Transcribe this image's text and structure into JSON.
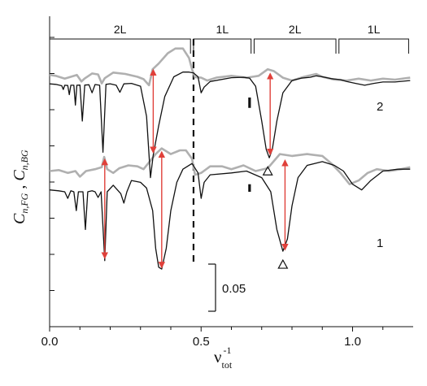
{
  "chart_data": {
    "type": "line",
    "xlabel": "ν",
    "xlabel_superscript": "-1",
    "xlabel_subscript": "tot",
    "ylabel_part1": "C",
    "ylabel_part1_sub": "n,FG",
    "ylabel_sep": " ,  ",
    "ylabel_part2": "C",
    "ylabel_part2_sub": "n,BG",
    "xlim": [
      0,
      1.2
    ],
    "xticks": [
      {
        "value": 0.0,
        "label": "0.0"
      },
      {
        "value": 0.5,
        "label": "0.5"
      },
      {
        "value": 1.0,
        "label": "1.0"
      }
    ],
    "scale_bar": {
      "label": "0.05",
      "value": 0.05
    },
    "dashed_line_x": 0.475,
    "regions": [
      {
        "label": "2L",
        "x_start": 0.0,
        "x_end": 0.465
      },
      {
        "label": "1L",
        "x_start": 0.475,
        "x_end": 0.665
      },
      {
        "label": "2L",
        "x_start": 0.675,
        "x_end": 0.945
      },
      {
        "label": "1L",
        "x_start": 0.955,
        "x_end": 1.185
      }
    ],
    "curve_labels": [
      {
        "label": "2",
        "series": "upper"
      },
      {
        "label": "1",
        "series": "lower"
      }
    ],
    "triangle_markers": [
      {
        "x": 0.72,
        "series": "upper"
      },
      {
        "x": 0.77,
        "series": "lower"
      }
    ],
    "series": [
      {
        "color": "#111111",
        "group": "upper",
        "points": [
          [
            0.0,
            0.0145
          ],
          [
            0.02,
            0.014
          ],
          [
            0.04,
            0.0125
          ],
          [
            0.045,
            0.0085
          ],
          [
            0.05,
            0.013
          ],
          [
            0.06,
            0.0128
          ],
          [
            0.065,
            0.003
          ],
          [
            0.07,
            0.013
          ],
          [
            0.08,
            0.013
          ],
          [
            0.085,
            -0.008
          ],
          [
            0.09,
            0.013
          ],
          [
            0.1,
            0.0132
          ],
          [
            0.108,
            -0.025
          ],
          [
            0.116,
            0.0132
          ],
          [
            0.13,
            0.0135
          ],
          [
            0.14,
            0.005
          ],
          [
            0.15,
            0.0138
          ],
          [
            0.165,
            0.013
          ],
          [
            0.176,
            -0.058
          ],
          [
            0.186,
            0.014
          ],
          [
            0.2,
            0.0146
          ],
          [
            0.22,
            0.013
          ],
          [
            0.232,
            0.0055
          ],
          [
            0.245,
            0.0145
          ],
          [
            0.27,
            0.015
          ],
          [
            0.3,
            0.012
          ],
          [
            0.32,
            -0.02
          ],
          [
            0.333,
            -0.085
          ],
          [
            0.342,
            -0.061
          ],
          [
            0.36,
            -0.03
          ],
          [
            0.38,
            0.001
          ],
          [
            0.41,
            0.022
          ],
          [
            0.44,
            0.027
          ],
          [
            0.46,
            0.027
          ],
          [
            0.475,
            0.026
          ],
          [
            0.49,
            0.022
          ],
          [
            0.5,
            0.005
          ],
          [
            0.51,
            0.011
          ],
          [
            0.53,
            0.017
          ],
          [
            0.6,
            0.021
          ],
          [
            0.64,
            0.0215
          ],
          [
            0.66,
            0.0205
          ],
          [
            0.68,
            0.012
          ],
          [
            0.7,
            -0.025
          ],
          [
            0.715,
            -0.055
          ],
          [
            0.725,
            -0.064
          ],
          [
            0.735,
            -0.055
          ],
          [
            0.75,
            -0.025
          ],
          [
            0.77,
            0.005
          ],
          [
            0.8,
            0.018
          ],
          [
            0.83,
            0.0205
          ],
          [
            0.86,
            0.0215
          ],
          [
            0.88,
            0.023
          ],
          [
            0.9,
            0.022
          ],
          [
            0.93,
            0.02
          ],
          [
            0.96,
            0.019
          ],
          [
            0.98,
            0.017
          ],
          [
            1.01,
            0.015
          ],
          [
            1.04,
            0.013
          ],
          [
            1.07,
            0.015
          ],
          [
            1.1,
            0.0165
          ],
          [
            1.14,
            0.0165
          ],
          [
            1.19,
            0.018
          ]
        ]
      },
      {
        "color": "#b0b0b0",
        "group": "upper",
        "points": [
          [
            0.0,
            0.024
          ],
          [
            0.02,
            0.023
          ],
          [
            0.05,
            0.02
          ],
          [
            0.07,
            0.022
          ],
          [
            0.09,
            0.024
          ],
          [
            0.105,
            0.017
          ],
          [
            0.115,
            0.02
          ],
          [
            0.14,
            0.0255
          ],
          [
            0.16,
            0.0245
          ],
          [
            0.172,
            0.015
          ],
          [
            0.182,
            0.0205
          ],
          [
            0.21,
            0.0265
          ],
          [
            0.25,
            0.025
          ],
          [
            0.29,
            0.022
          ],
          [
            0.31,
            0.0195
          ],
          [
            0.328,
            0.013
          ],
          [
            0.34,
            0.03
          ],
          [
            0.36,
            0.036
          ],
          [
            0.39,
            0.047
          ],
          [
            0.415,
            0.052
          ],
          [
            0.44,
            0.052
          ],
          [
            0.46,
            0.042
          ],
          [
            0.47,
            0.03
          ],
          [
            0.48,
            0.0215
          ],
          [
            0.5,
            0.021
          ],
          [
            0.52,
            0.018
          ],
          [
            0.55,
            0.021
          ],
          [
            0.6,
            0.023
          ],
          [
            0.65,
            0.021
          ],
          [
            0.69,
            0.023
          ],
          [
            0.72,
            0.03
          ],
          [
            0.74,
            0.028
          ],
          [
            0.77,
            0.021
          ],
          [
            0.8,
            0.018
          ],
          [
            0.84,
            0.022
          ],
          [
            0.88,
            0.025
          ],
          [
            0.9,
            0.022
          ],
          [
            0.94,
            0.019
          ],
          [
            0.98,
            0.018
          ],
          [
            1.02,
            0.02
          ],
          [
            1.06,
            0.018
          ],
          [
            1.1,
            0.02
          ],
          [
            1.14,
            0.019
          ],
          [
            1.19,
            0.021
          ]
        ]
      },
      {
        "color": "#111111",
        "group": "lower",
        "points": [
          [
            0.0,
            -0.098
          ],
          [
            0.03,
            -0.099
          ],
          [
            0.05,
            -0.1
          ],
          [
            0.06,
            -0.107
          ],
          [
            0.07,
            -0.099
          ],
          [
            0.08,
            -0.1
          ],
          [
            0.088,
            -0.12
          ],
          [
            0.095,
            -0.1
          ],
          [
            0.11,
            -0.1
          ],
          [
            0.118,
            -0.14
          ],
          [
            0.126,
            -0.1
          ],
          [
            0.14,
            -0.099
          ],
          [
            0.15,
            -0.1
          ],
          [
            0.16,
            -0.106
          ],
          [
            0.17,
            -0.1
          ],
          [
            0.182,
            -0.173
          ],
          [
            0.19,
            -0.1
          ],
          [
            0.21,
            -0.093
          ],
          [
            0.235,
            -0.102
          ],
          [
            0.245,
            -0.112
          ],
          [
            0.255,
            -0.1
          ],
          [
            0.27,
            -0.088
          ],
          [
            0.3,
            -0.09
          ],
          [
            0.32,
            -0.096
          ],
          [
            0.34,
            -0.12
          ],
          [
            0.35,
            -0.16
          ],
          [
            0.36,
            -0.18
          ],
          [
            0.37,
            -0.182
          ],
          [
            0.385,
            -0.16
          ],
          [
            0.4,
            -0.12
          ],
          [
            0.42,
            -0.09
          ],
          [
            0.44,
            -0.076
          ],
          [
            0.47,
            -0.07
          ],
          [
            0.49,
            -0.08
          ],
          [
            0.5,
            -0.107
          ],
          [
            0.51,
            -0.09
          ],
          [
            0.53,
            -0.082
          ],
          [
            0.6,
            -0.08
          ],
          [
            0.65,
            -0.078
          ],
          [
            0.7,
            -0.085
          ],
          [
            0.73,
            -0.1
          ],
          [
            0.75,
            -0.14
          ],
          [
            0.77,
            -0.163
          ],
          [
            0.785,
            -0.15
          ],
          [
            0.8,
            -0.115
          ],
          [
            0.82,
            -0.085
          ],
          [
            0.85,
            -0.072
          ],
          [
            0.9,
            -0.068
          ],
          [
            0.94,
            -0.072
          ],
          [
            0.97,
            -0.078
          ],
          [
            1.0,
            -0.092
          ],
          [
            1.03,
            -0.098
          ],
          [
            1.06,
            -0.088
          ],
          [
            1.1,
            -0.078
          ],
          [
            1.15,
            -0.076
          ],
          [
            1.19,
            -0.076
          ]
        ]
      },
      {
        "color": "#b0b0b0",
        "group": "lower",
        "points": [
          [
            0.0,
            -0.078
          ],
          [
            0.03,
            -0.077
          ],
          [
            0.06,
            -0.08
          ],
          [
            0.085,
            -0.078
          ],
          [
            0.1,
            -0.084
          ],
          [
            0.12,
            -0.078
          ],
          [
            0.15,
            -0.076
          ],
          [
            0.172,
            -0.074
          ],
          [
            0.18,
            -0.063
          ],
          [
            0.19,
            -0.076
          ],
          [
            0.21,
            -0.08
          ],
          [
            0.23,
            -0.075
          ],
          [
            0.26,
            -0.072
          ],
          [
            0.29,
            -0.073
          ],
          [
            0.31,
            -0.076
          ],
          [
            0.33,
            -0.068
          ],
          [
            0.35,
            -0.06
          ],
          [
            0.37,
            -0.054
          ],
          [
            0.4,
            -0.06
          ],
          [
            0.43,
            -0.056
          ],
          [
            0.45,
            -0.056
          ],
          [
            0.47,
            -0.065
          ],
          [
            0.48,
            -0.082
          ],
          [
            0.5,
            -0.08
          ],
          [
            0.53,
            -0.073
          ],
          [
            0.57,
            -0.073
          ],
          [
            0.6,
            -0.076
          ],
          [
            0.64,
            -0.072
          ],
          [
            0.68,
            -0.078
          ],
          [
            0.72,
            -0.075
          ],
          [
            0.76,
            -0.06
          ],
          [
            0.8,
            -0.062
          ],
          [
            0.85,
            -0.06
          ],
          [
            0.9,
            -0.062
          ],
          [
            0.93,
            -0.07
          ],
          [
            0.96,
            -0.08
          ],
          [
            0.99,
            -0.092
          ],
          [
            1.02,
            -0.088
          ],
          [
            1.05,
            -0.08
          ],
          [
            1.08,
            -0.076
          ],
          [
            1.12,
            -0.078
          ],
          [
            1.16,
            -0.076
          ],
          [
            1.19,
            -0.074
          ]
        ]
      }
    ],
    "red_arrows": [
      {
        "x": 0.342,
        "y_top": 0.029,
        "y_bottom": -0.058
      },
      {
        "x": 0.728,
        "y_top": 0.025,
        "y_bottom": -0.06
      },
      {
        "x": 0.182,
        "y_top": -0.066,
        "y_bottom": -0.17
      },
      {
        "x": 0.37,
        "y_top": -0.058,
        "y_bottom": -0.18
      },
      {
        "x": 0.777,
        "y_top": -0.067,
        "y_bottom": -0.161
      }
    ],
    "marker_bars": [
      {
        "x": 0.66,
        "y_top": 0.0,
        "y_bottom": -0.011
      },
      {
        "x": 0.66,
        "y_top": -0.092,
        "y_bottom": -0.1
      }
    ]
  }
}
